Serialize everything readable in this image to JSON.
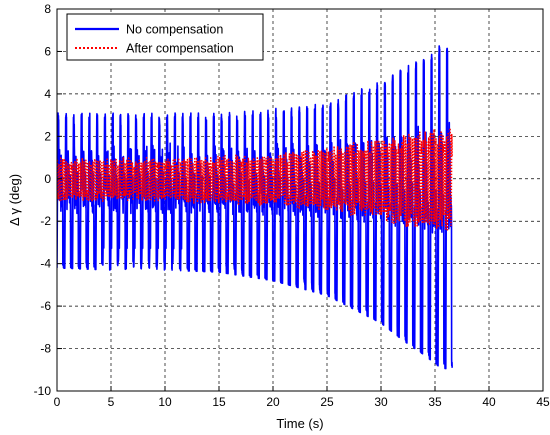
{
  "chart_data": {
    "type": "line",
    "title": "",
    "xlabel": "Time (s)",
    "ylabel": "Δ γ (deg)",
    "xlim": [
      0,
      45
    ],
    "ylim": [
      -10,
      8
    ],
    "xticks": [
      0,
      5,
      10,
      15,
      20,
      25,
      30,
      35,
      40,
      45
    ],
    "yticks": [
      -10,
      -8,
      -6,
      -4,
      -2,
      0,
      2,
      4,
      6,
      8
    ],
    "grid": true,
    "legend_position": "top-left",
    "cycle_period": 0.72,
    "t_end": 36.6,
    "series": [
      {
        "name": "No compensation",
        "color": "#0000ff",
        "style": "solid",
        "envelope_t": [
          0,
          5,
          10,
          15,
          20,
          25,
          30,
          32,
          34,
          35.5,
          36.6
        ],
        "envelope_upper": [
          3.1,
          3.1,
          3.1,
          3.1,
          3.3,
          3.6,
          4.6,
          5.2,
          5.8,
          6.3,
          6.5
        ],
        "envelope_lower": [
          -4.2,
          -4.3,
          -4.3,
          -4.4,
          -4.8,
          -5.5,
          -6.8,
          -7.6,
          -8.3,
          -8.9,
          -9.0
        ]
      },
      {
        "name": "After compensation",
        "color": "#ff0000",
        "style": "dotted",
        "envelope_t": [
          0,
          10,
          20,
          25,
          30,
          33,
          36.6
        ],
        "envelope_upper": [
          1.0,
          1.0,
          1.2,
          1.5,
          2.0,
          2.3,
          2.5
        ],
        "envelope_lower": [
          -1.1,
          -1.1,
          -1.3,
          -1.6,
          -2.0,
          -2.4,
          -2.6
        ]
      }
    ]
  }
}
